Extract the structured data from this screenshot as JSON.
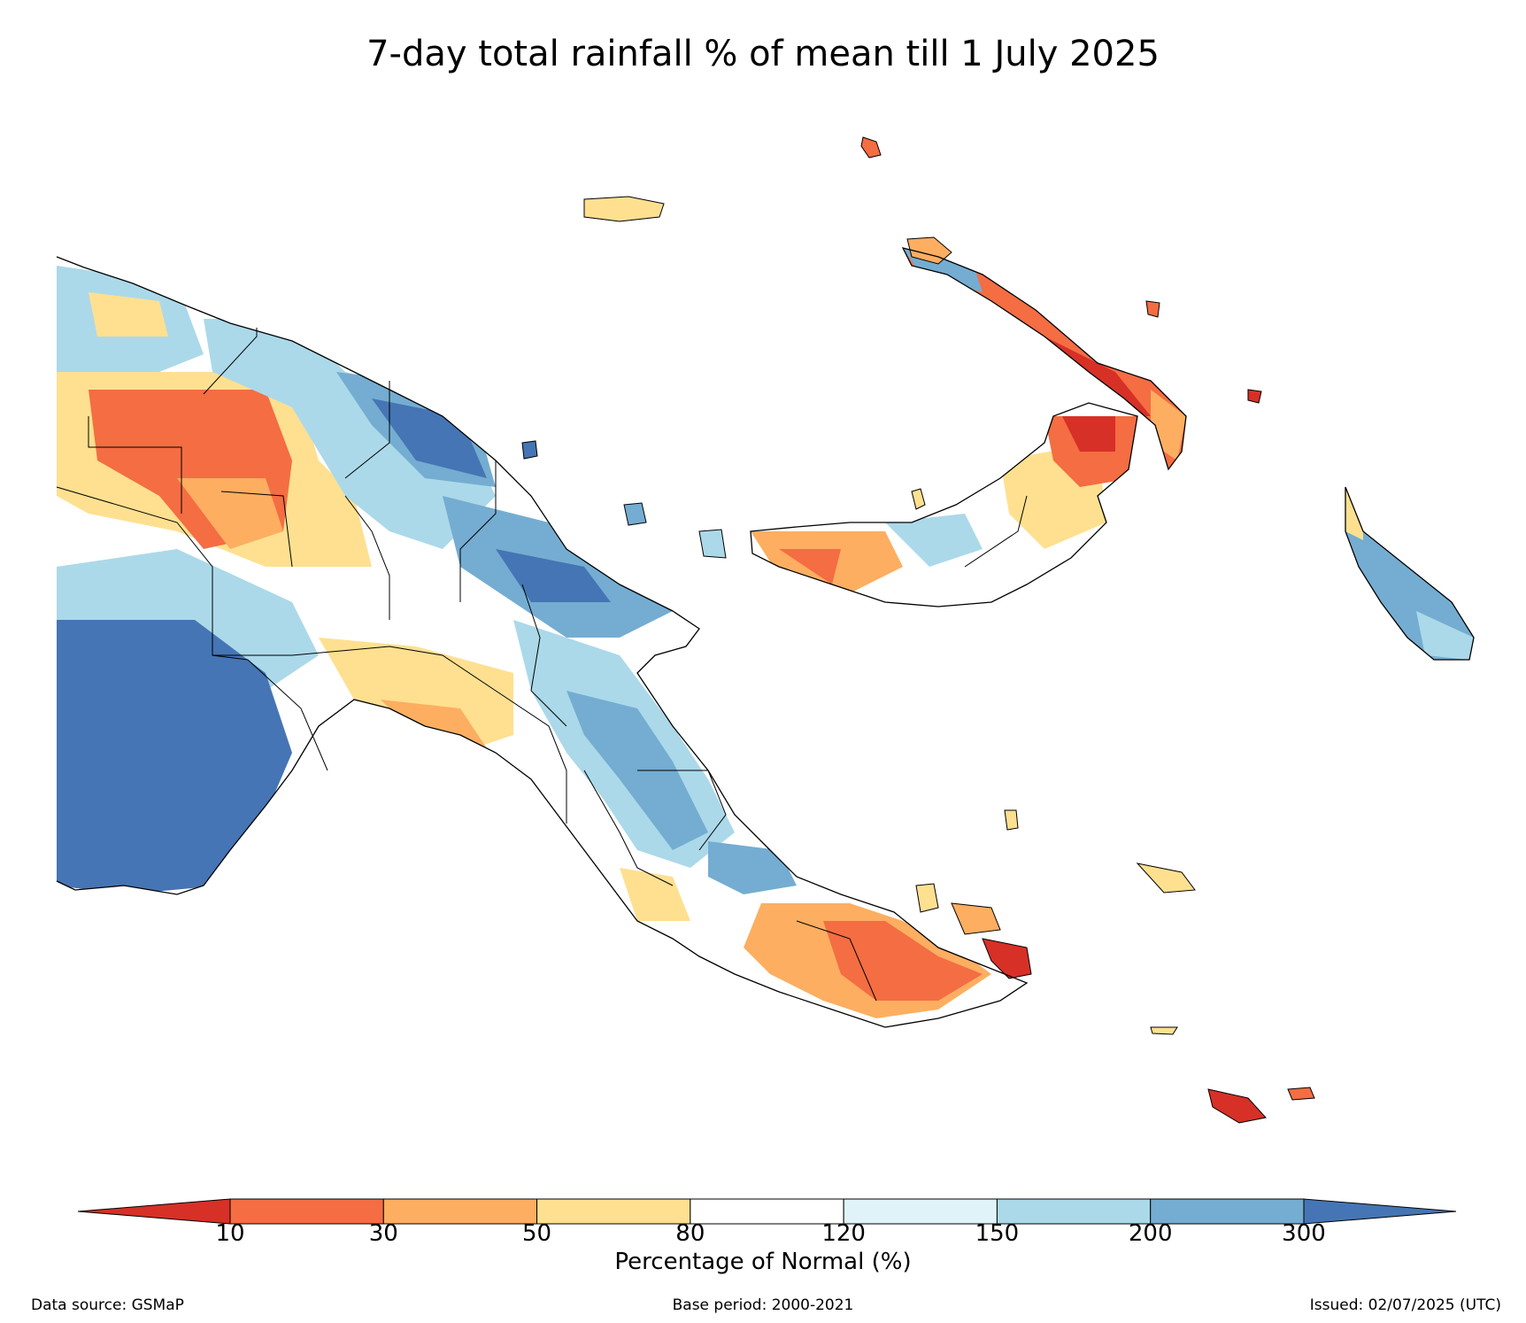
{
  "title": "7-day total rainfall % of mean till 1 July 2025",
  "colorbar": {
    "label": "Percentage of Normal (%)",
    "ticks": [
      "10",
      "30",
      "50",
      "80",
      "120",
      "150",
      "200",
      "300"
    ],
    "bins": [
      {
        "range": "<10",
        "color": "#d73027"
      },
      {
        "range": "10-30",
        "color": "#f46d43"
      },
      {
        "range": "30-50",
        "color": "#fdae61"
      },
      {
        "range": "50-80",
        "color": "#fee090"
      },
      {
        "range": "80-120",
        "color": "#ffffff"
      },
      {
        "range": "120-150",
        "color": "#e0f3f8"
      },
      {
        "range": "150-200",
        "color": "#abd9e9"
      },
      {
        "range": "200-300",
        "color": "#74add1"
      },
      {
        "range": ">300",
        "color": "#4575b4"
      }
    ]
  },
  "footer": {
    "source": "Data source: GSMaP",
    "base_period": "Base period: 2000-2021",
    "issued": "Issued: 02/07/2025 (UTC)"
  }
}
